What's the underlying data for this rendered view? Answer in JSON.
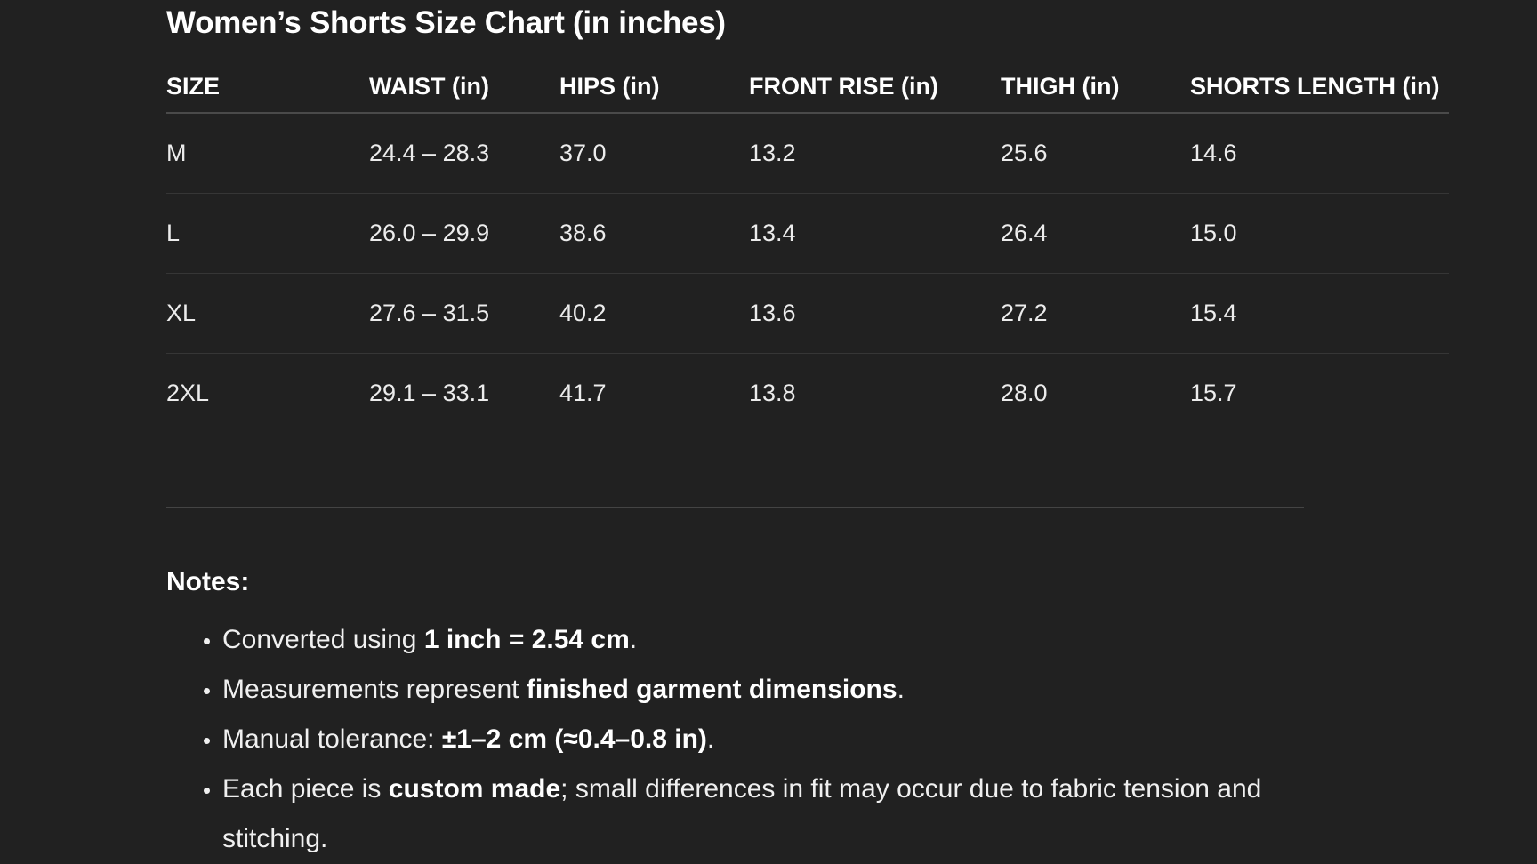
{
  "title": "Women’s Shorts Size Chart (in inches)",
  "table": {
    "headers": [
      "SIZE",
      "WAIST (in)",
      "HIPS (in)",
      "FRONT RISE (in)",
      "THIGH (in)",
      "SHORTS LENGTH (in)"
    ],
    "rows": [
      [
        "M",
        "24.4 – 28.3",
        "37.0",
        "13.2",
        "25.6",
        "14.6"
      ],
      [
        "L",
        "26.0 – 29.9",
        "38.6",
        "13.4",
        "26.4",
        "15.0"
      ],
      [
        "XL",
        "27.6 – 31.5",
        "40.2",
        "13.6",
        "27.2",
        "15.4"
      ],
      [
        "2XL",
        "29.1 – 33.1",
        "41.7",
        "13.8",
        "28.0",
        "15.7"
      ]
    ]
  },
  "notes": {
    "title": "Notes:",
    "items": [
      {
        "a": "Converted using ",
        "b": "1 inch = 2.54 cm",
        "c": "."
      },
      {
        "a": "Measurements represent ",
        "b": "finished garment dimensions",
        "c": "."
      },
      {
        "a": "Manual tolerance: ",
        "b": "±1–2 cm (≈0.4–0.8 in)",
        "c": "."
      },
      {
        "a": "Each piece is ",
        "b": "custom made",
        "c": "; small differences in fit may occur due to fabric tension and stitching."
      }
    ]
  }
}
